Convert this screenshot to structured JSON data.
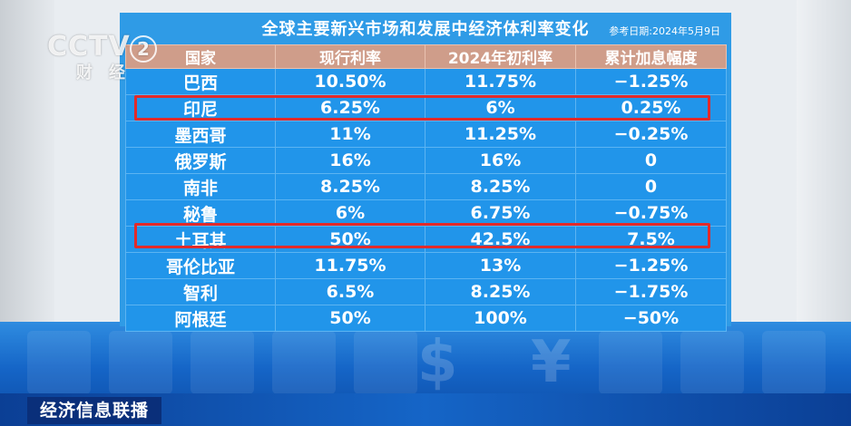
{
  "channel": {
    "logo": "CCTV",
    "number": "2",
    "subtitle": "财经"
  },
  "board": {
    "title": "全球主要新兴市场和发展中经济体利率变化",
    "date_note": "参考日期:2024年5月9日",
    "columns": [
      "国家",
      "现行利率",
      "2024年初利率",
      "累计加息幅度"
    ],
    "rows": [
      [
        "巴西",
        "10.50%",
        "11.75%",
        "−1.25%"
      ],
      [
        "印尼",
        "6.25%",
        "6%",
        "0.25%"
      ],
      [
        "墨西哥",
        "11%",
        "11.25%",
        "−0.25%"
      ],
      [
        "俄罗斯",
        "16%",
        "16%",
        "0"
      ],
      [
        "南非",
        "8.25%",
        "8.25%",
        "0"
      ],
      [
        "秘鲁",
        "6%",
        "6.75%",
        "−0.75%"
      ],
      [
        "土耳其",
        "50%",
        "42.5%",
        "7.5%"
      ],
      [
        "哥伦比亚",
        "11.75%",
        "13%",
        "−1.25%"
      ],
      [
        "智利",
        "6.5%",
        "8.25%",
        "−1.75%"
      ],
      [
        "阿根廷",
        "50%",
        "100%",
        "−50%"
      ]
    ]
  },
  "ticker": {
    "label": "经济信息联播"
  },
  "band_symbols": [
    "$",
    "¥"
  ],
  "colors": {
    "board_bg": "#2f9be6",
    "header_bg": "#cf9d8a",
    "highlight": "#e22a2a"
  }
}
